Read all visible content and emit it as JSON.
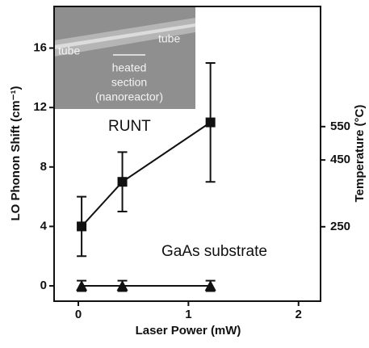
{
  "chart_data": {
    "type": "scatter",
    "x_label": "Laser Power (mW)",
    "y_label": "LO Phonon Shift (cm⁻¹)",
    "y2_label": "Temperature (°C)",
    "x": [
      0.03,
      0.4,
      1.2
    ],
    "series": [
      {
        "name": "RUNT",
        "color": "#111111",
        "marker": "square",
        "values": [
          4,
          7,
          11
        ],
        "errors": [
          2,
          2,
          4
        ]
      },
      {
        "name": "GaAs substrate",
        "color": "#111111",
        "marker": "triangle",
        "values": [
          0,
          0,
          0
        ],
        "errors": [
          0.35,
          0.35,
          0.35
        ]
      }
    ],
    "xlim": [
      -0.22,
      2.2
    ],
    "xticks": [
      0,
      1,
      2
    ],
    "ylim": [
      -1.03,
      18.8
    ],
    "yticks": [
      0,
      4,
      8,
      12,
      16
    ],
    "y2lim": [
      27,
      910
    ],
    "y2ticks": [
      250,
      450,
      550
    ],
    "inset": {
      "left_label": "tube",
      "right_label": "tube",
      "caption": [
        "heated",
        "section",
        "(nanoreactor)"
      ]
    }
  }
}
